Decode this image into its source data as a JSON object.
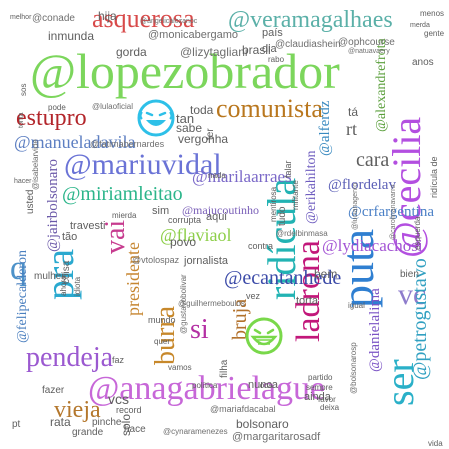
{
  "words": [
    {
      "text": "@lopezobrador",
      "color": "#7cd65c"
    },
    {
      "text": "@anagabrielague",
      "color": "#c767d8"
    },
    {
      "text": "@mariuvidal",
      "color": "#6a73d6"
    },
    {
      "text": "pendeja",
      "color": "#9b59d0"
    },
    {
      "text": "ridícula",
      "color": "#22b3b3"
    },
    {
      "text": "puta",
      "color": "#2f7fd1"
    },
    {
      "text": "ser",
      "color": "#2ab0c8"
    },
    {
      "text": "@cecilia",
      "color": "#b34fe0"
    },
    {
      "text": "ladrona",
      "color": "#c2177a"
    },
    {
      "text": "asquerosa",
      "color": "#d84a4a"
    },
    {
      "text": "@veramagalhaes",
      "color": "#5bb0a8"
    },
    {
      "text": "comunista",
      "color": "#b9771e"
    },
    {
      "text": "estupro",
      "color": "#b3262b"
    },
    {
      "text": "pra",
      "color": "#2aa9cf"
    },
    {
      "text": "vai",
      "color": "#c73c8f"
    },
    {
      "text": "vieja",
      "color": "#b4772c"
    },
    {
      "text": "burra",
      "color": "#c7882b"
    },
    {
      "text": "@miriamleitao",
      "color": "#2bb58a"
    },
    {
      "text": "@ecantanhede",
      "color": "#3c4ba8"
    },
    {
      "text": "vc",
      "color": "#8e7ccc"
    },
    {
      "text": "@petrogustavo",
      "color": "#31a0c1"
    },
    {
      "text": "si",
      "color": "#b42fa3"
    },
    {
      "text": "q",
      "color": "#4d92c9"
    },
    {
      "text": "presidente",
      "color": "#c68630"
    },
    {
      "text": "@flaviaol",
      "color": "#8ecf4a"
    },
    {
      "text": "bruja",
      "color": "#b2712b"
    },
    {
      "text": "@manueladavila",
      "color": "#5d7fc2"
    },
    {
      "text": "@marilaarraes",
      "color": "#7a68c8"
    },
    {
      "text": "@lydiacachosi",
      "color": "#a354d4"
    },
    {
      "text": "@crfargentina",
      "color": "#4b80c6"
    },
    {
      "text": "@flordelav",
      "color": "#5c60b7"
    },
    {
      "text": "@alferdz",
      "color": "#3a8ac0"
    },
    {
      "text": "@alexandrefrota",
      "color": "#5a9f3b"
    },
    {
      "text": "@majucoutinho",
      "color": "#7a5fb8"
    },
    {
      "text": "@erikahilton",
      "color": "#6e5cbf"
    },
    {
      "text": "@danielalima",
      "color": "#7b53c5"
    },
    {
      "text": "@jairbolsonaro",
      "color": "#6a58a8"
    },
    {
      "text": "@felipecalderon",
      "color": "#4a7fbf"
    },
    {
      "text": "@margaritarosadf",
      "color": "#6f6f6f"
    },
    {
      "text": "@monicabergamo",
      "color": "#6f6f6f"
    },
    {
      "text": "@lizytagliani",
      "color": "#6f6f6f"
    },
    {
      "text": "@ophcourse",
      "color": "#6f6f6f"
    },
    {
      "text": "@claudiashein",
      "color": "#6f6f6f"
    },
    {
      "text": "@conade",
      "color": "#6f6f6f"
    },
    {
      "text": "@lulaoficial",
      "color": "#6f6f6f"
    },
    {
      "text": "@fatimabernardes",
      "color": "#6f6f6f"
    },
    {
      "text": "@guilhermeboulos",
      "color": "#6f6f6f"
    },
    {
      "text": "@mariafdacabal",
      "color": "#6f6f6f"
    },
    {
      "text": "@cynaramenezes",
      "color": "#6f6f6f"
    },
    {
      "text": "@isabelarvide",
      "color": "#6f6f6f"
    },
    {
      "text": "@vtolospaz",
      "color": "#6f6f6f"
    },
    {
      "text": "@gustavobolivar",
      "color": "#6f6f6f"
    },
    {
      "text": "@bolsonarosp",
      "color": "#6f6f6f"
    },
    {
      "text": "@angelicalozanoc",
      "color": "#6f6f6f"
    },
    {
      "text": "@natuavaery",
      "color": "#6f6f6f"
    },
    {
      "text": "@carolinanavarro",
      "color": "#6f6f6f"
    },
    {
      "text": "@rdelbinmasa",
      "color": "#6f6f6f"
    },
    {
      "text": "@lucianagenro",
      "color": "#6f6f6f"
    },
    {
      "text": "mulher",
      "color": "#5f5f5f"
    },
    {
      "text": "gorda",
      "color": "#5f5f5f"
    },
    {
      "text": "brasil",
      "color": "#5f5f5f"
    },
    {
      "text": "hija",
      "color": "#5f5f5f"
    },
    {
      "text": "país",
      "color": "#5f5f5f"
    },
    {
      "text": "dia",
      "color": "#5f5f5f"
    },
    {
      "text": "inmunda",
      "color": "#5f5f5f"
    },
    {
      "text": "cara",
      "color": "#5f5f5f"
    },
    {
      "text": "rt",
      "color": "#5f5f5f"
    },
    {
      "text": "tá",
      "color": "#5f5f5f"
    },
    {
      "text": "tan",
      "color": "#5f5f5f"
    },
    {
      "text": "sabe",
      "color": "#5f5f5f"
    },
    {
      "text": "vergonha",
      "color": "#5f5f5f"
    },
    {
      "text": "toda",
      "color": "#5f5f5f"
    },
    {
      "text": "travesti",
      "color": "#5f5f5f"
    },
    {
      "text": "mierda",
      "color": "#5f5f5f"
    },
    {
      "text": "sim",
      "color": "#5f5f5f"
    },
    {
      "text": "aqui",
      "color": "#5f5f5f"
    },
    {
      "text": "corrupta",
      "color": "#5f5f5f"
    },
    {
      "text": "vez",
      "color": "#5f5f5f"
    },
    {
      "text": "povo",
      "color": "#5f5f5f"
    },
    {
      "text": "jornalista",
      "color": "#5f5f5f"
    },
    {
      "text": "torta",
      "color": "#5f5f5f"
    },
    {
      "text": "igual",
      "color": "#5f5f5f"
    },
    {
      "text": "bem",
      "color": "#5f5f5f"
    },
    {
      "text": "bien",
      "color": "#5f5f5f"
    },
    {
      "text": "nunca",
      "color": "#5f5f5f"
    },
    {
      "text": "ainda",
      "color": "#5f5f5f"
    },
    {
      "text": "bolsonaro",
      "color": "#5f5f5f"
    },
    {
      "text": "hace",
      "color": "#5f5f5f"
    },
    {
      "text": "filha",
      "color": "#5f5f5f"
    },
    {
      "text": "vcs",
      "color": "#5f5f5f"
    },
    {
      "text": "rata",
      "color": "#5f5f5f"
    },
    {
      "text": "pinche",
      "color": "#5f5f5f"
    },
    {
      "text": "grande",
      "color": "#5f5f5f"
    },
    {
      "text": "fazer",
      "color": "#5f5f5f"
    },
    {
      "text": "pode",
      "color": "#5f5f5f"
    },
    {
      "text": "sos",
      "color": "#5f5f5f"
    },
    {
      "text": "tonta",
      "color": "#5f5f5f"
    },
    {
      "text": "ahora",
      "color": "#5f5f5f"
    },
    {
      "text": "idiota",
      "color": "#5f5f5f"
    },
    {
      "text": "loca",
      "color": "#5f5f5f"
    },
    {
      "text": "partido",
      "color": "#5f5f5f"
    },
    {
      "text": "política",
      "color": "#5f5f5f"
    },
    {
      "text": "favor",
      "color": "#5f5f5f"
    },
    {
      "text": "deixa",
      "color": "#5f5f5f"
    },
    {
      "text": "record",
      "color": "#5f5f5f"
    },
    {
      "text": "solo",
      "color": "#5f5f5f"
    },
    {
      "text": "vida",
      "color": "#5f5f5f"
    },
    {
      "text": "tão",
      "color": "#5f5f5f"
    },
    {
      "text": "usted",
      "color": "#5f5f5f"
    },
    {
      "text": "tudo",
      "color": "#5f5f5f"
    },
    {
      "text": "menos",
      "color": "#5f5f5f"
    },
    {
      "text": "merda",
      "color": "#5f5f5f"
    },
    {
      "text": "anos",
      "color": "#5f5f5f"
    },
    {
      "text": "ter",
      "color": "#5f5f5f"
    },
    {
      "text": "melhor",
      "color": "#5f5f5f"
    },
    {
      "text": "hacer",
      "color": "#5f5f5f"
    },
    {
      "text": "mentirosa",
      "color": "#5f5f5f"
    },
    {
      "text": "esquerda",
      "color": "#5f5f5f"
    },
    {
      "text": "sempre",
      "color": "#5f5f5f"
    },
    {
      "text": "falar",
      "color": "#5f5f5f"
    },
    {
      "text": "contra",
      "color": "#5f5f5f"
    },
    {
      "text": "militante",
      "color": "#5f5f5f"
    },
    {
      "text": "coisa",
      "color": "#5f5f5f"
    },
    {
      "text": "mundo",
      "color": "#5f5f5f"
    },
    {
      "text": "faz",
      "color": "#5f5f5f"
    },
    {
      "text": "vamos",
      "color": "#5f5f5f"
    },
    {
      "text": "quer",
      "color": "#5f5f5f"
    },
    {
      "text": "pt",
      "color": "#5f5f5f"
    },
    {
      "text": "gente",
      "color": "#5f5f5f"
    },
    {
      "text": "rabo",
      "color": "#5f5f5f"
    },
    {
      "text": "nada",
      "color": "#5f5f5f"
    },
    {
      "text": "ridícula de",
      "color": "#5f5f5f"
    }
  ],
  "emojis": [
    {
      "name": "laughing-face-emoji",
      "color": "#2ec0e8"
    },
    {
      "name": "grinning-face-emoji",
      "color": "#79d84a"
    }
  ]
}
